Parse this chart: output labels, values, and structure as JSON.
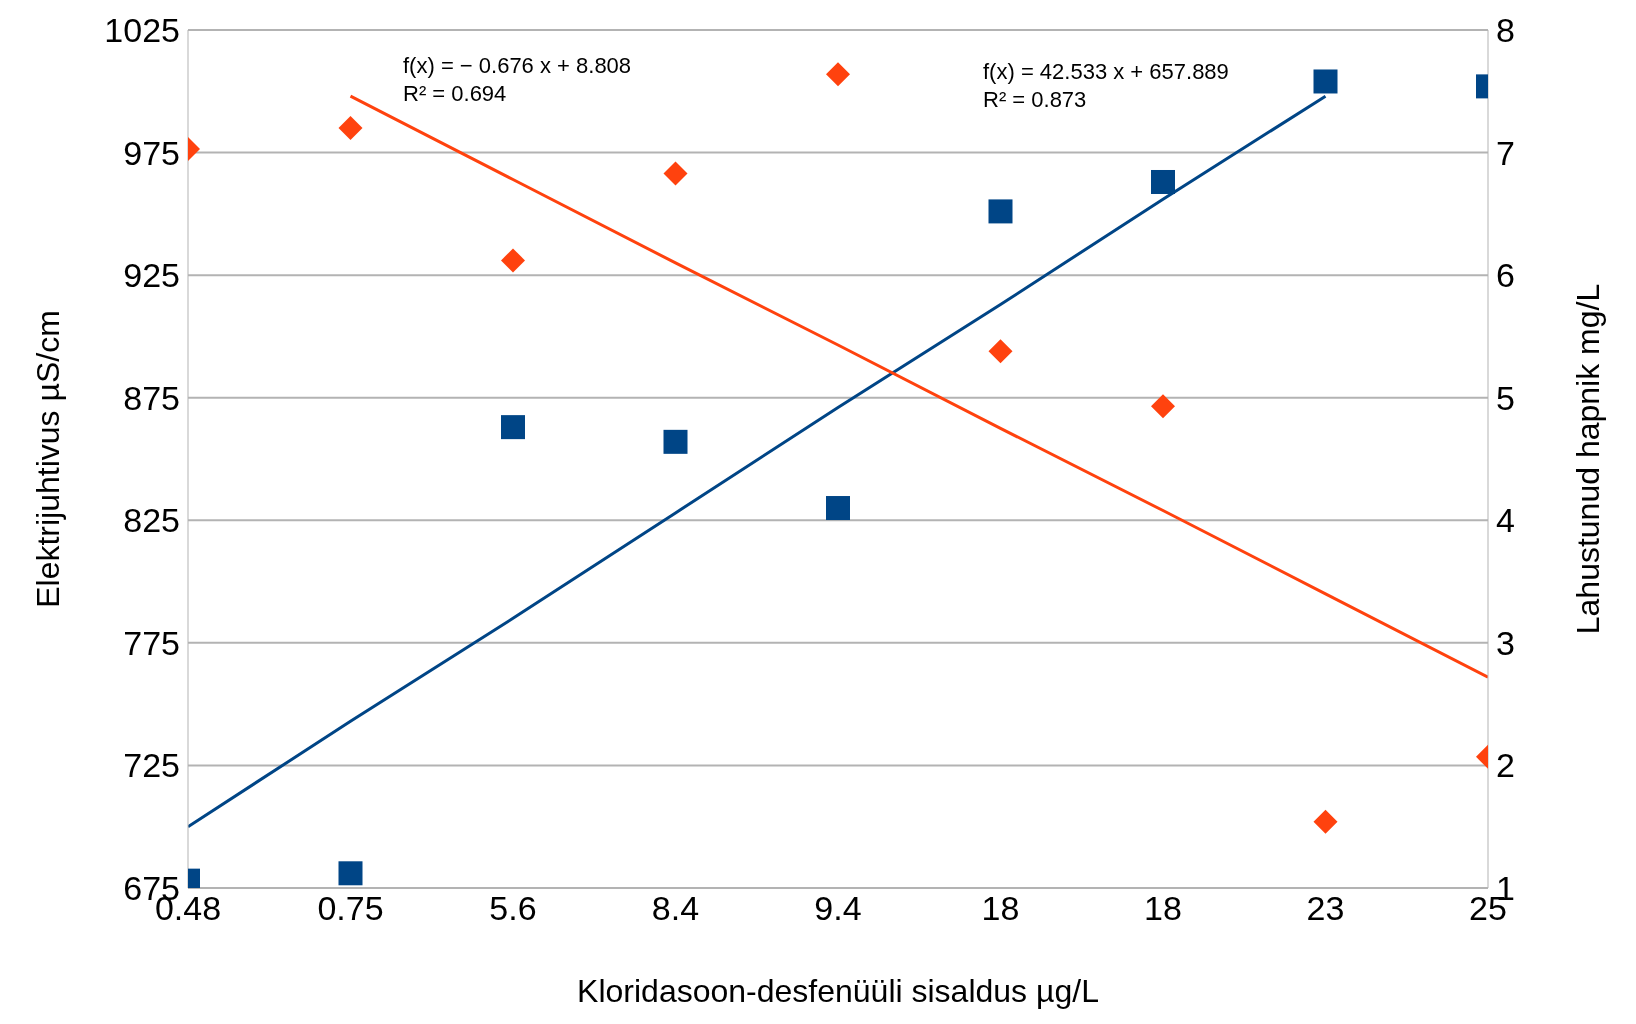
{
  "chart_data": {
    "type": "scatter",
    "xlabel": "Kloridasoon-desfenüüli sisaldus µg/L",
    "ylabel": "Elektrijuhtivus µS/cm",
    "y2label": "Lahustunud hapnik mg/L",
    "categories": [
      "0.48",
      "0.75",
      "5.6",
      "8.4",
      "9.4",
      "18",
      "18",
      "23",
      "25"
    ],
    "ylim": [
      675,
      1025
    ],
    "yticks": [
      675,
      725,
      775,
      825,
      875,
      925,
      975,
      1025
    ],
    "y2lim": [
      1,
      8
    ],
    "y2ticks": [
      1,
      2,
      3,
      4,
      5,
      6,
      7,
      8
    ],
    "grid": "y",
    "legend": false,
    "series": [
      {
        "marker": "square",
        "color": "#004586",
        "values": [
          678,
          681,
          863,
          857,
          830,
          951,
          963,
          1004,
          1002
        ]
      },
      {
        "marker": "diamond",
        "axis": "y2",
        "color": "#ff420e",
        "values": [
          7.03,
          7.2,
          6.12,
          6.83,
          7.64,
          5.38,
          4.93,
          1.54,
          2.07
        ]
      },
      {
        "type": "line",
        "marker": "none",
        "color": "#004586",
        "values": [
          700,
          743,
          785,
          828,
          871,
          913,
          956,
          998,
          null
        ]
      },
      {
        "type": "line",
        "marker": "none",
        "axis": "y2",
        "color": "#ff420e",
        "values": [
          null,
          7.46,
          6.78,
          6.1,
          5.43,
          4.75,
          4.08,
          3.4,
          2.72
        ]
      }
    ],
    "annotations": [
      "f(x) = − 0.676 x + 8.808\nR² = 0.694",
      "f(x) = 42.533 x + 657.889\nR² = 0.873"
    ]
  }
}
